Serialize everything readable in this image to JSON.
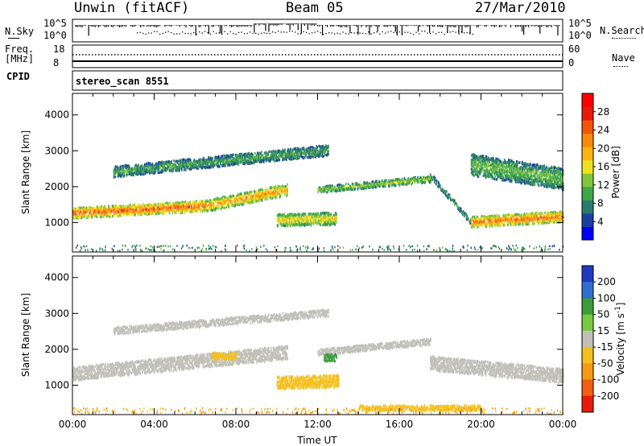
{
  "header": {
    "station": "Unwin (fitACF)",
    "beam": "Beam 05",
    "date": "27/Mar/2010"
  },
  "top_panels": {
    "nsky_label": "N.Sky",
    "nsearch_label": "N.Search",
    "nsky_ticks": [
      "10^5",
      "10^0"
    ],
    "nsearch_ticks": [
      "10^5",
      "10^0"
    ],
    "freq_label_line1": "Freq.",
    "freq_label_line2": "[MHz]",
    "freq_ticks": [
      "18",
      "8"
    ],
    "nave_label": "Nave",
    "nave_ticks": [
      "60",
      "0"
    ],
    "cpid_label": "CPID",
    "cpid_value": "stereo_scan 8551"
  },
  "colors": {
    "power_scale": [
      "#0000ff",
      "#1a3fa0",
      "#2b7a6e",
      "#3fa64a",
      "#80c63c",
      "#f0e020",
      "#f9b312",
      "#f78a0c",
      "#f2550a",
      "#e81a08",
      "#ff0000"
    ],
    "velocity_scale": [
      "#2038c0",
      "#2f6fd0",
      "#3a9c3a",
      "#78c840",
      "#c0c0b8",
      "#f4c020",
      "#f49a14",
      "#f06010",
      "#e81a08"
    ],
    "ground_scatter": "#c0c0b8"
  },
  "chart_data": [
    {
      "type": "heatmap",
      "panel": "power",
      "xlabel": "",
      "ylabel": "Slant Range [km]",
      "xlim": [
        "00:00",
        "24:00"
      ],
      "ylim": [
        180,
        4600
      ],
      "yticks": [
        "1000",
        "2000",
        "3000",
        "4000"
      ],
      "colorbar": {
        "label": "Power [dB]",
        "ticks": [
          "4",
          "8",
          "12",
          "16",
          "20",
          "24",
          "28"
        ],
        "range": [
          0,
          32
        ]
      },
      "regions": [
        {
          "t_start": 0.0,
          "t_end": 6.5,
          "range_center": [
            1250,
            1450
          ],
          "range_width": 300,
          "power_db": 26
        },
        {
          "t_start": 6.5,
          "t_end": 10.5,
          "range_center": [
            1450,
            1900
          ],
          "range_width": 320,
          "power_db": 22
        },
        {
          "t_start": 10.0,
          "t_end": 12.9,
          "range_center": [
            1050,
            1100
          ],
          "range_width": 350,
          "power_db": 18
        },
        {
          "t_start": 12.0,
          "t_end": 17.5,
          "range_center": [
            1900,
            2200
          ],
          "range_width": 180,
          "power_db": 14
        },
        {
          "t_start": 17.5,
          "t_end": 19.5,
          "range_center": [
            2300,
            1000
          ],
          "range_width": 150,
          "power_db": 10
        },
        {
          "t_start": 19.5,
          "t_end": 24.0,
          "range_center": [
            1000,
            1150
          ],
          "range_width": 300,
          "power_db": 25
        },
        {
          "t_start": 2.0,
          "t_end": 12.5,
          "range_center": [
            2400,
            3000
          ],
          "range_width": 300,
          "power_db": 10
        },
        {
          "t_start": 19.5,
          "t_end": 24.0,
          "range_center": [
            2600,
            2200
          ],
          "range_width": 600,
          "power_db": 12
        }
      ]
    },
    {
      "type": "heatmap",
      "panel": "velocity",
      "xlabel": "Time UT",
      "ylabel": "Slant Range [km]",
      "xlim": [
        "00:00",
        "24:00"
      ],
      "ylim": [
        180,
        4600
      ],
      "yticks": [
        "1000",
        "2000",
        "3000",
        "4000"
      ],
      "xticks": [
        "00:00",
        "04:00",
        "08:00",
        "12:00",
        "16:00",
        "20:00",
        "00:00"
      ],
      "colorbar": {
        "label": "Velocity [m s^-1]",
        "ticks": [
          "200",
          "100",
          "50",
          "15",
          "-15",
          "-50",
          "-100",
          "-200"
        ]
      },
      "regions": [
        {
          "t_start": 0.0,
          "t_end": 10.5,
          "range_center": [
            1300,
            1900
          ],
          "range_width": 380,
          "velocity": 0
        },
        {
          "t_start": 10.0,
          "t_end": 13.0,
          "range_center": [
            1050,
            1100
          ],
          "range_width": 350,
          "velocity": -40
        },
        {
          "t_start": 12.0,
          "t_end": 17.5,
          "range_center": [
            1900,
            2200
          ],
          "range_width": 180,
          "velocity": 0
        },
        {
          "t_start": 12.3,
          "t_end": 12.9,
          "range_center": [
            1750,
            1750
          ],
          "range_width": 200,
          "velocity": 40
        },
        {
          "t_start": 17.5,
          "t_end": 24.0,
          "range_center": [
            1600,
            1250
          ],
          "range_width": 400,
          "velocity": 0
        },
        {
          "t_start": 6.8,
          "t_end": 8.0,
          "range_center": [
            1800,
            1800
          ],
          "range_width": 200,
          "velocity": -40
        },
        {
          "t_start": 14.0,
          "t_end": 20.0,
          "range_center": [
            350,
            350
          ],
          "range_width": 150,
          "velocity": -30
        },
        {
          "t_start": 2.0,
          "t_end": 12.5,
          "range_center": [
            2500,
            3000
          ],
          "range_width": 200,
          "velocity": 0
        }
      ]
    }
  ]
}
